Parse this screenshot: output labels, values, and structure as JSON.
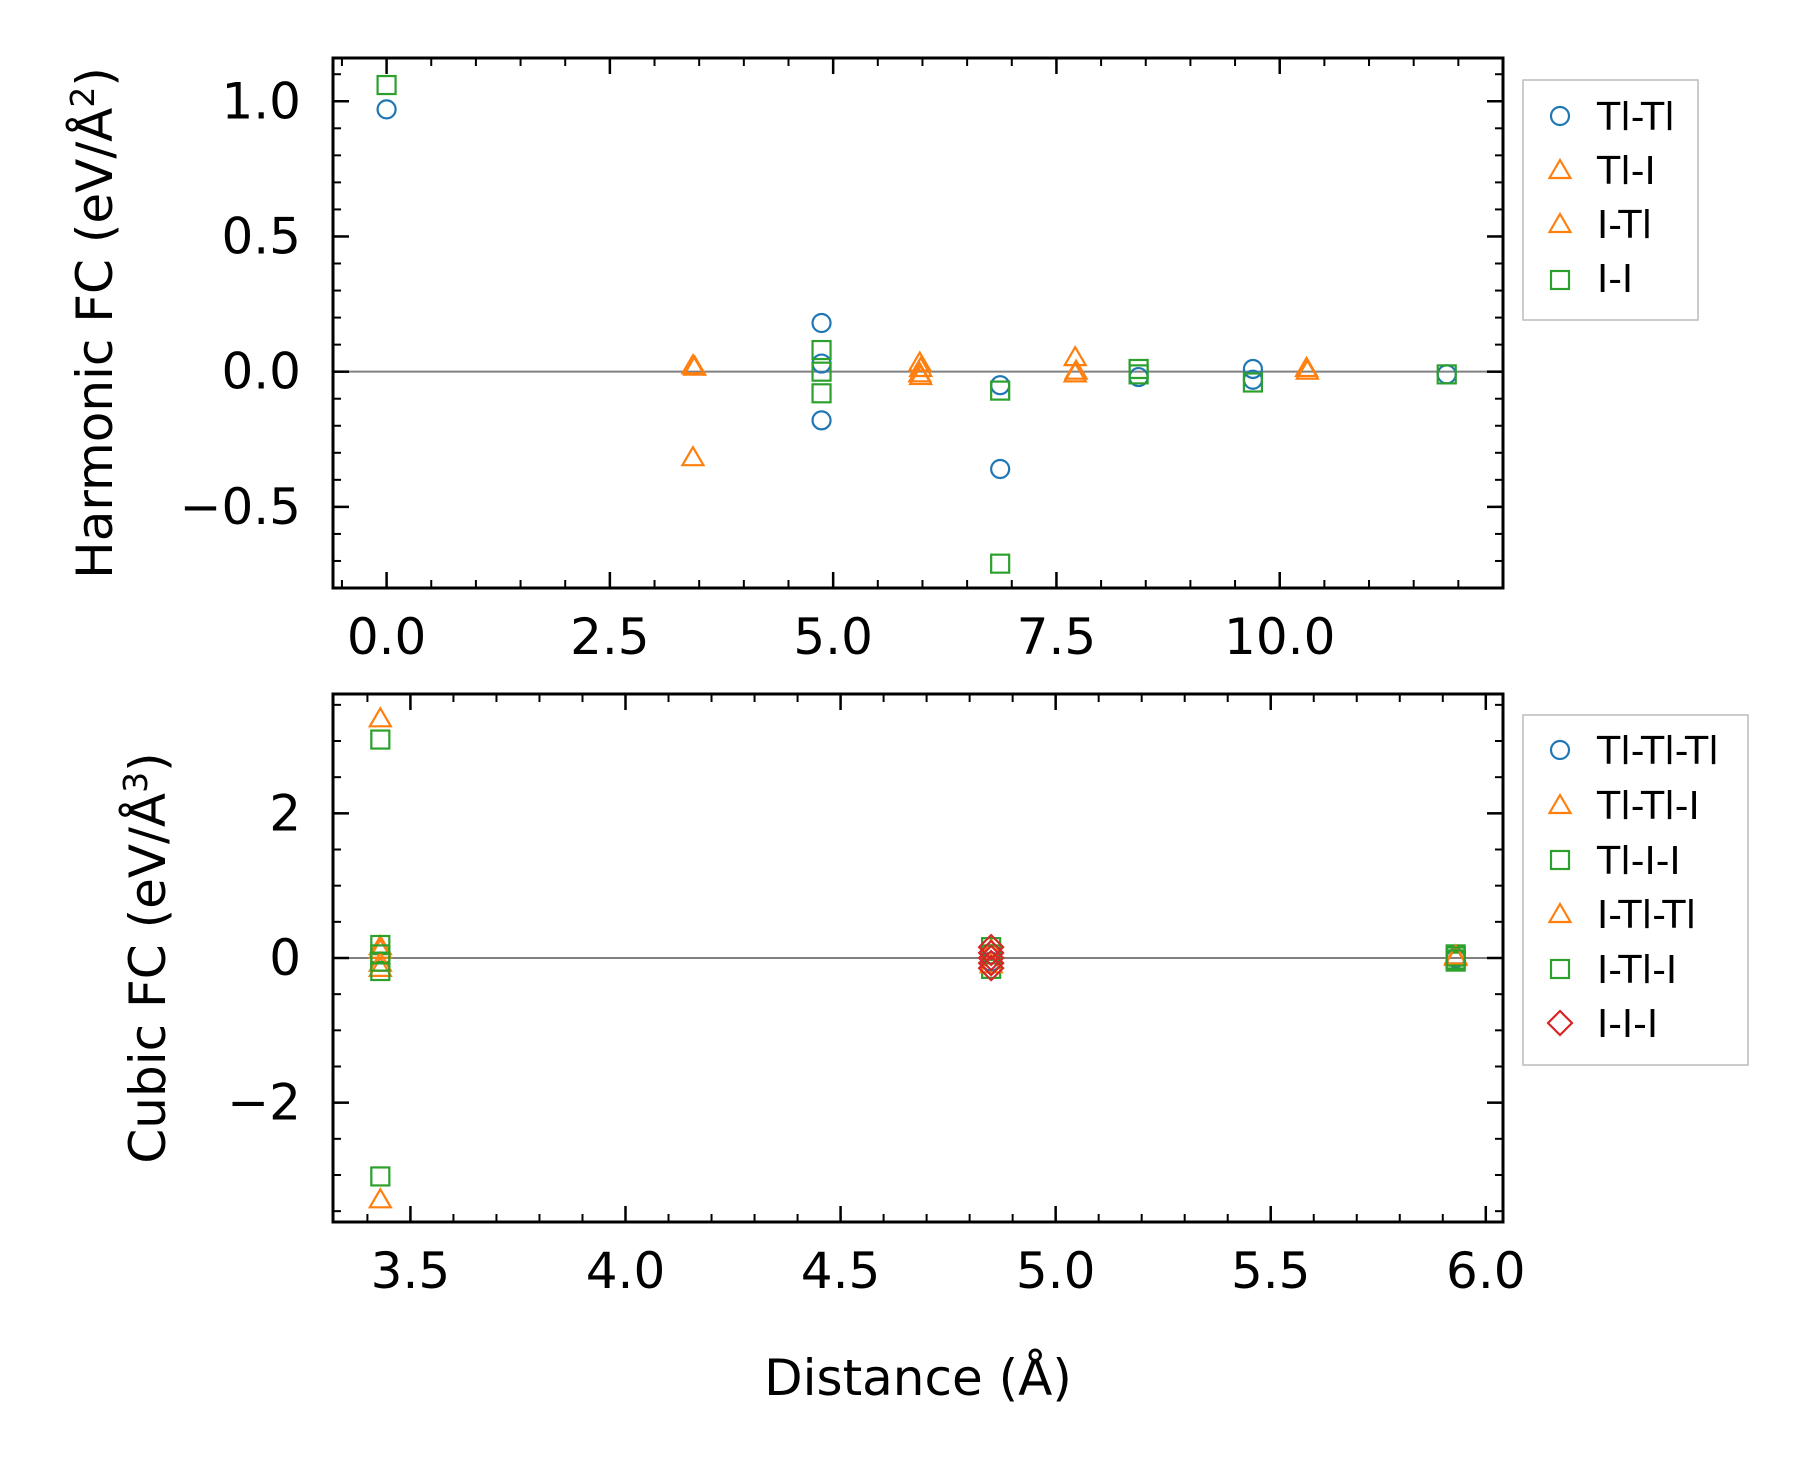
{
  "chart_data": [
    {
      "type": "scatter",
      "ylabel_main": "Harmonic FC (eV/Å",
      "ylabel_sup": "2",
      "ylabel_close": ")",
      "xlabel": "",
      "xlim": [
        -0.6,
        12.5
      ],
      "ylim": [
        -0.8,
        1.16
      ],
      "xticks": [
        0.0,
        2.5,
        5.0,
        7.5,
        10.0
      ],
      "xtick_labels": [
        "0.0",
        "2.5",
        "5.0",
        "7.5",
        "10.0"
      ],
      "yticks": [
        1.0,
        0.5,
        0.0,
        -0.5
      ],
      "ytick_labels": [
        "1.0",
        "0.5",
        "0.0",
        "−0.5"
      ],
      "zero_line": true,
      "legend_position": "outside-right",
      "series": [
        {
          "name": "Tl-Tl",
          "marker": "circle",
          "color": "#1f77b4",
          "points": [
            [
              0,
              0.97
            ],
            [
              4.87,
              0.18
            ],
            [
              4.87,
              0.03
            ],
            [
              4.87,
              -0.18
            ],
            [
              6.87,
              -0.05
            ],
            [
              6.87,
              -0.36
            ],
            [
              8.42,
              -0.02
            ],
            [
              9.7,
              0.01
            ],
            [
              9.7,
              -0.03
            ],
            [
              11.87,
              -0.01
            ]
          ]
        },
        {
          "name": "Tl-I",
          "marker": "triangle",
          "color": "#ff7f0e",
          "points": [
            [
              3.43,
              0.02
            ],
            [
              3.43,
              -0.32
            ],
            [
              5.97,
              0.03
            ],
            [
              5.97,
              -0.01
            ],
            [
              7.71,
              0.05
            ],
            [
              7.71,
              -0.01
            ],
            [
              10.3,
              0.01
            ]
          ]
        },
        {
          "name": "I-Tl",
          "marker": "triangle",
          "color": "#ff7f0e",
          "points": [
            [
              3.45,
              0.015
            ],
            [
              5.98,
              0.01
            ],
            [
              5.98,
              -0.02
            ],
            [
              7.72,
              0.0
            ],
            [
              10.31,
              0.0
            ]
          ]
        },
        {
          "name": "I-I",
          "marker": "square",
          "color": "#2ca02c",
          "points": [
            [
              0,
              1.06
            ],
            [
              4.87,
              0.08
            ],
            [
              4.87,
              0.0
            ],
            [
              4.87,
              -0.08
            ],
            [
              6.87,
              -0.07
            ],
            [
              6.87,
              -0.71
            ],
            [
              8.42,
              0.01
            ],
            [
              8.42,
              -0.01
            ],
            [
              9.7,
              -0.04
            ],
            [
              11.87,
              -0.01
            ]
          ]
        }
      ]
    },
    {
      "type": "scatter",
      "ylabel_main": "Cubic FC (eV/Å",
      "ylabel_sup": "3",
      "ylabel_close": ")",
      "xlabel": "Distance (Å)",
      "xlim": [
        3.32,
        6.04
      ],
      "ylim": [
        -3.65,
        3.65
      ],
      "xticks": [
        3.5,
        4.0,
        4.5,
        5.0,
        5.5,
        6.0
      ],
      "xtick_labels": [
        "3.5",
        "4.0",
        "4.5",
        "5.0",
        "5.5",
        "6.0"
      ],
      "yticks": [
        2,
        0,
        -2
      ],
      "ytick_labels": [
        "2",
        "0",
        "−2"
      ],
      "zero_line": true,
      "legend_position": "outside-right",
      "series": [
        {
          "name": "Tl-Tl-Tl",
          "marker": "circle",
          "color": "#1f77b4",
          "points": [
            [
              4.85,
              0.05
            ],
            [
              4.85,
              -0.05
            ],
            [
              5.93,
              0.0
            ]
          ]
        },
        {
          "name": "Tl-Tl-I",
          "marker": "triangle",
          "color": "#ff7f0e",
          "points": [
            [
              3.43,
              3.3
            ],
            [
              3.43,
              -3.35
            ],
            [
              3.43,
              0.15
            ],
            [
              3.43,
              -0.15
            ],
            [
              4.85,
              0.1
            ],
            [
              5.93,
              0.0
            ]
          ]
        },
        {
          "name": "Tl-I-I",
          "marker": "square",
          "color": "#2ca02c",
          "points": [
            [
              3.43,
              3.02
            ],
            [
              3.43,
              -3.02
            ],
            [
              3.43,
              0.18
            ],
            [
              3.43,
              -0.18
            ],
            [
              4.85,
              0.15
            ],
            [
              4.85,
              -0.15
            ],
            [
              5.93,
              0.05
            ],
            [
              5.93,
              -0.05
            ]
          ]
        },
        {
          "name": "I-Tl-Tl",
          "marker": "triangle",
          "color": "#ff7f0e",
          "points": [
            [
              3.43,
              0.1
            ],
            [
              3.43,
              -0.08
            ],
            [
              4.85,
              -0.1
            ],
            [
              5.93,
              0.02
            ]
          ]
        },
        {
          "name": "I-Tl-I",
          "marker": "square",
          "color": "#2ca02c",
          "points": [
            [
              3.43,
              0.05
            ],
            [
              3.43,
              -0.05
            ],
            [
              4.85,
              0.05
            ],
            [
              5.93,
              0.02
            ],
            [
              5.93,
              -0.02
            ]
          ]
        },
        {
          "name": "I-I-I",
          "marker": "diamond",
          "color": "#d62728",
          "points": [
            [
              4.85,
              0.15
            ],
            [
              4.85,
              0.07
            ],
            [
              4.85,
              0.0
            ],
            [
              4.85,
              -0.07
            ],
            [
              4.85,
              -0.14
            ]
          ]
        }
      ]
    }
  ]
}
